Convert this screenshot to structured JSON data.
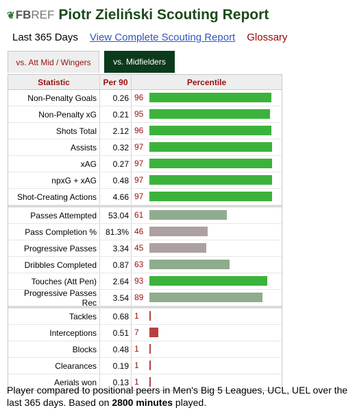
{
  "header": {
    "logo_fb": "FB",
    "logo_ref": "REF",
    "title": "Piotr Zieliński Scouting Report"
  },
  "links": {
    "period": "Last 365 Days",
    "full_report": "View Complete Scouting Report",
    "glossary": "Glossary"
  },
  "tabs": [
    {
      "label": "vs. Att Mid / Wingers",
      "active": false
    },
    {
      "label": "vs. Midfielders",
      "active": true
    }
  ],
  "table": {
    "headers": [
      "Statistic",
      "Per 90",
      "Percentile"
    ],
    "colors": {
      "high": "#3bb33b",
      "mid": "#8fac8f",
      "low": "#ada0a0",
      "bottom": "#b84040"
    },
    "groups": [
      [
        {
          "stat": "Non-Penalty Goals",
          "per90": "0.26",
          "percentile": 96
        },
        {
          "stat": "Non-Penalty xG",
          "per90": "0.21",
          "percentile": 95
        },
        {
          "stat": "Shots Total",
          "per90": "2.12",
          "percentile": 96
        },
        {
          "stat": "Assists",
          "per90": "0.32",
          "percentile": 97
        },
        {
          "stat": "xAG",
          "per90": "0.27",
          "percentile": 97
        },
        {
          "stat": "npxG + xAG",
          "per90": "0.48",
          "percentile": 97
        },
        {
          "stat": "Shot-Creating Actions",
          "per90": "4.66",
          "percentile": 97
        }
      ],
      [
        {
          "stat": "Passes Attempted",
          "per90": "53.04",
          "percentile": 61
        },
        {
          "stat": "Pass Completion %",
          "per90": "81.3%",
          "percentile": 46
        },
        {
          "stat": "Progressive Passes",
          "per90": "3.34",
          "percentile": 45
        },
        {
          "stat": "Dribbles Completed",
          "per90": "0.87",
          "percentile": 63
        },
        {
          "stat": "Touches (Att Pen)",
          "per90": "2.64",
          "percentile": 93
        },
        {
          "stat": "Progressive Passes Rec",
          "per90": "3.54",
          "percentile": 89
        }
      ],
      [
        {
          "stat": "Tackles",
          "per90": "0.68",
          "percentile": 1
        },
        {
          "stat": "Interceptions",
          "per90": "0.51",
          "percentile": 7
        },
        {
          "stat": "Blocks",
          "per90": "0.48",
          "percentile": 1
        },
        {
          "stat": "Clearances",
          "per90": "0.19",
          "percentile": 1
        },
        {
          "stat": "Aerials won",
          "per90": "0.13",
          "percentile": 1
        }
      ]
    ]
  },
  "footnote": {
    "text_before": "Player compared to positional peers in Men's Big 5 Leagues, UCL, UEL over the last 365 days. Based on ",
    "minutes": "2800 minutes",
    "text_after": " played."
  }
}
